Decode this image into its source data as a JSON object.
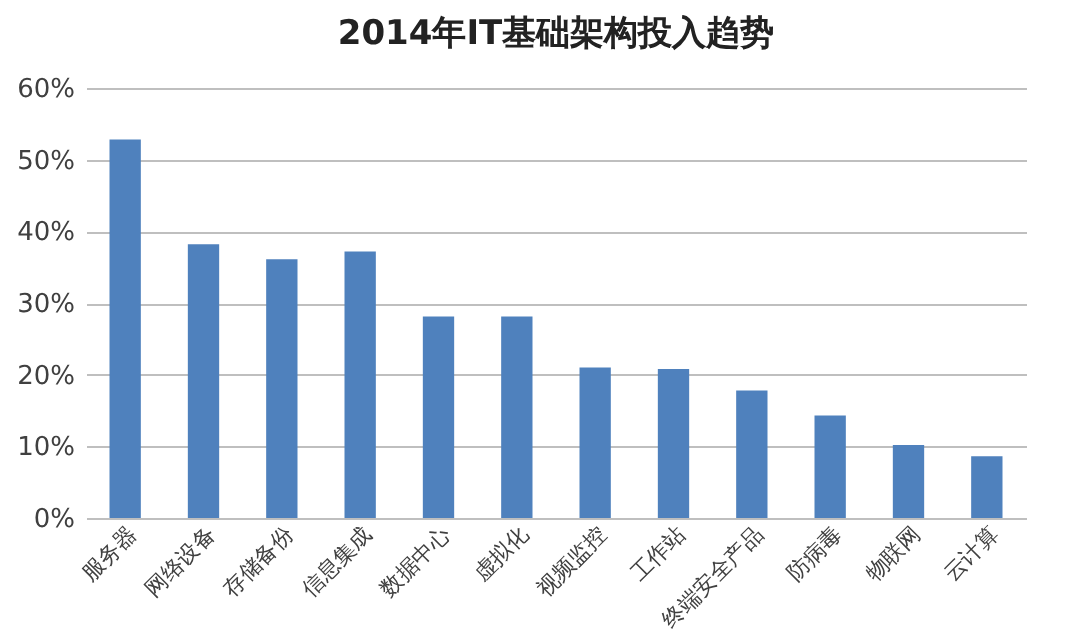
{
  "chart_data": {
    "type": "bar",
    "title": "2014年IT基础架构投入趋势",
    "categories": [
      "服务器",
      "网络设备",
      "存储备份",
      "信息集成",
      "数据中心",
      "虚拟化",
      "视频监控",
      "工作站",
      "终端安全产品",
      "防病毒",
      "物联网",
      "云计算"
    ],
    "values": [
      52.8,
      38.2,
      36.1,
      37.2,
      28.1,
      28.1,
      21.0,
      20.8,
      17.8,
      14.3,
      10.2,
      8.6
    ],
    "color": "#4f81bd",
    "ylim": [
      0,
      60
    ],
    "yticks": [
      {
        "value": 0,
        "label": "0%"
      },
      {
        "value": 10,
        "label": "10%"
      },
      {
        "value": 20,
        "label": "20%"
      },
      {
        "value": 30,
        "label": "30%"
      },
      {
        "value": 40,
        "label": "40%"
      },
      {
        "value": 50,
        "label": "50%"
      },
      {
        "value": 60,
        "label": "60%"
      }
    ],
    "grid": "y"
  }
}
